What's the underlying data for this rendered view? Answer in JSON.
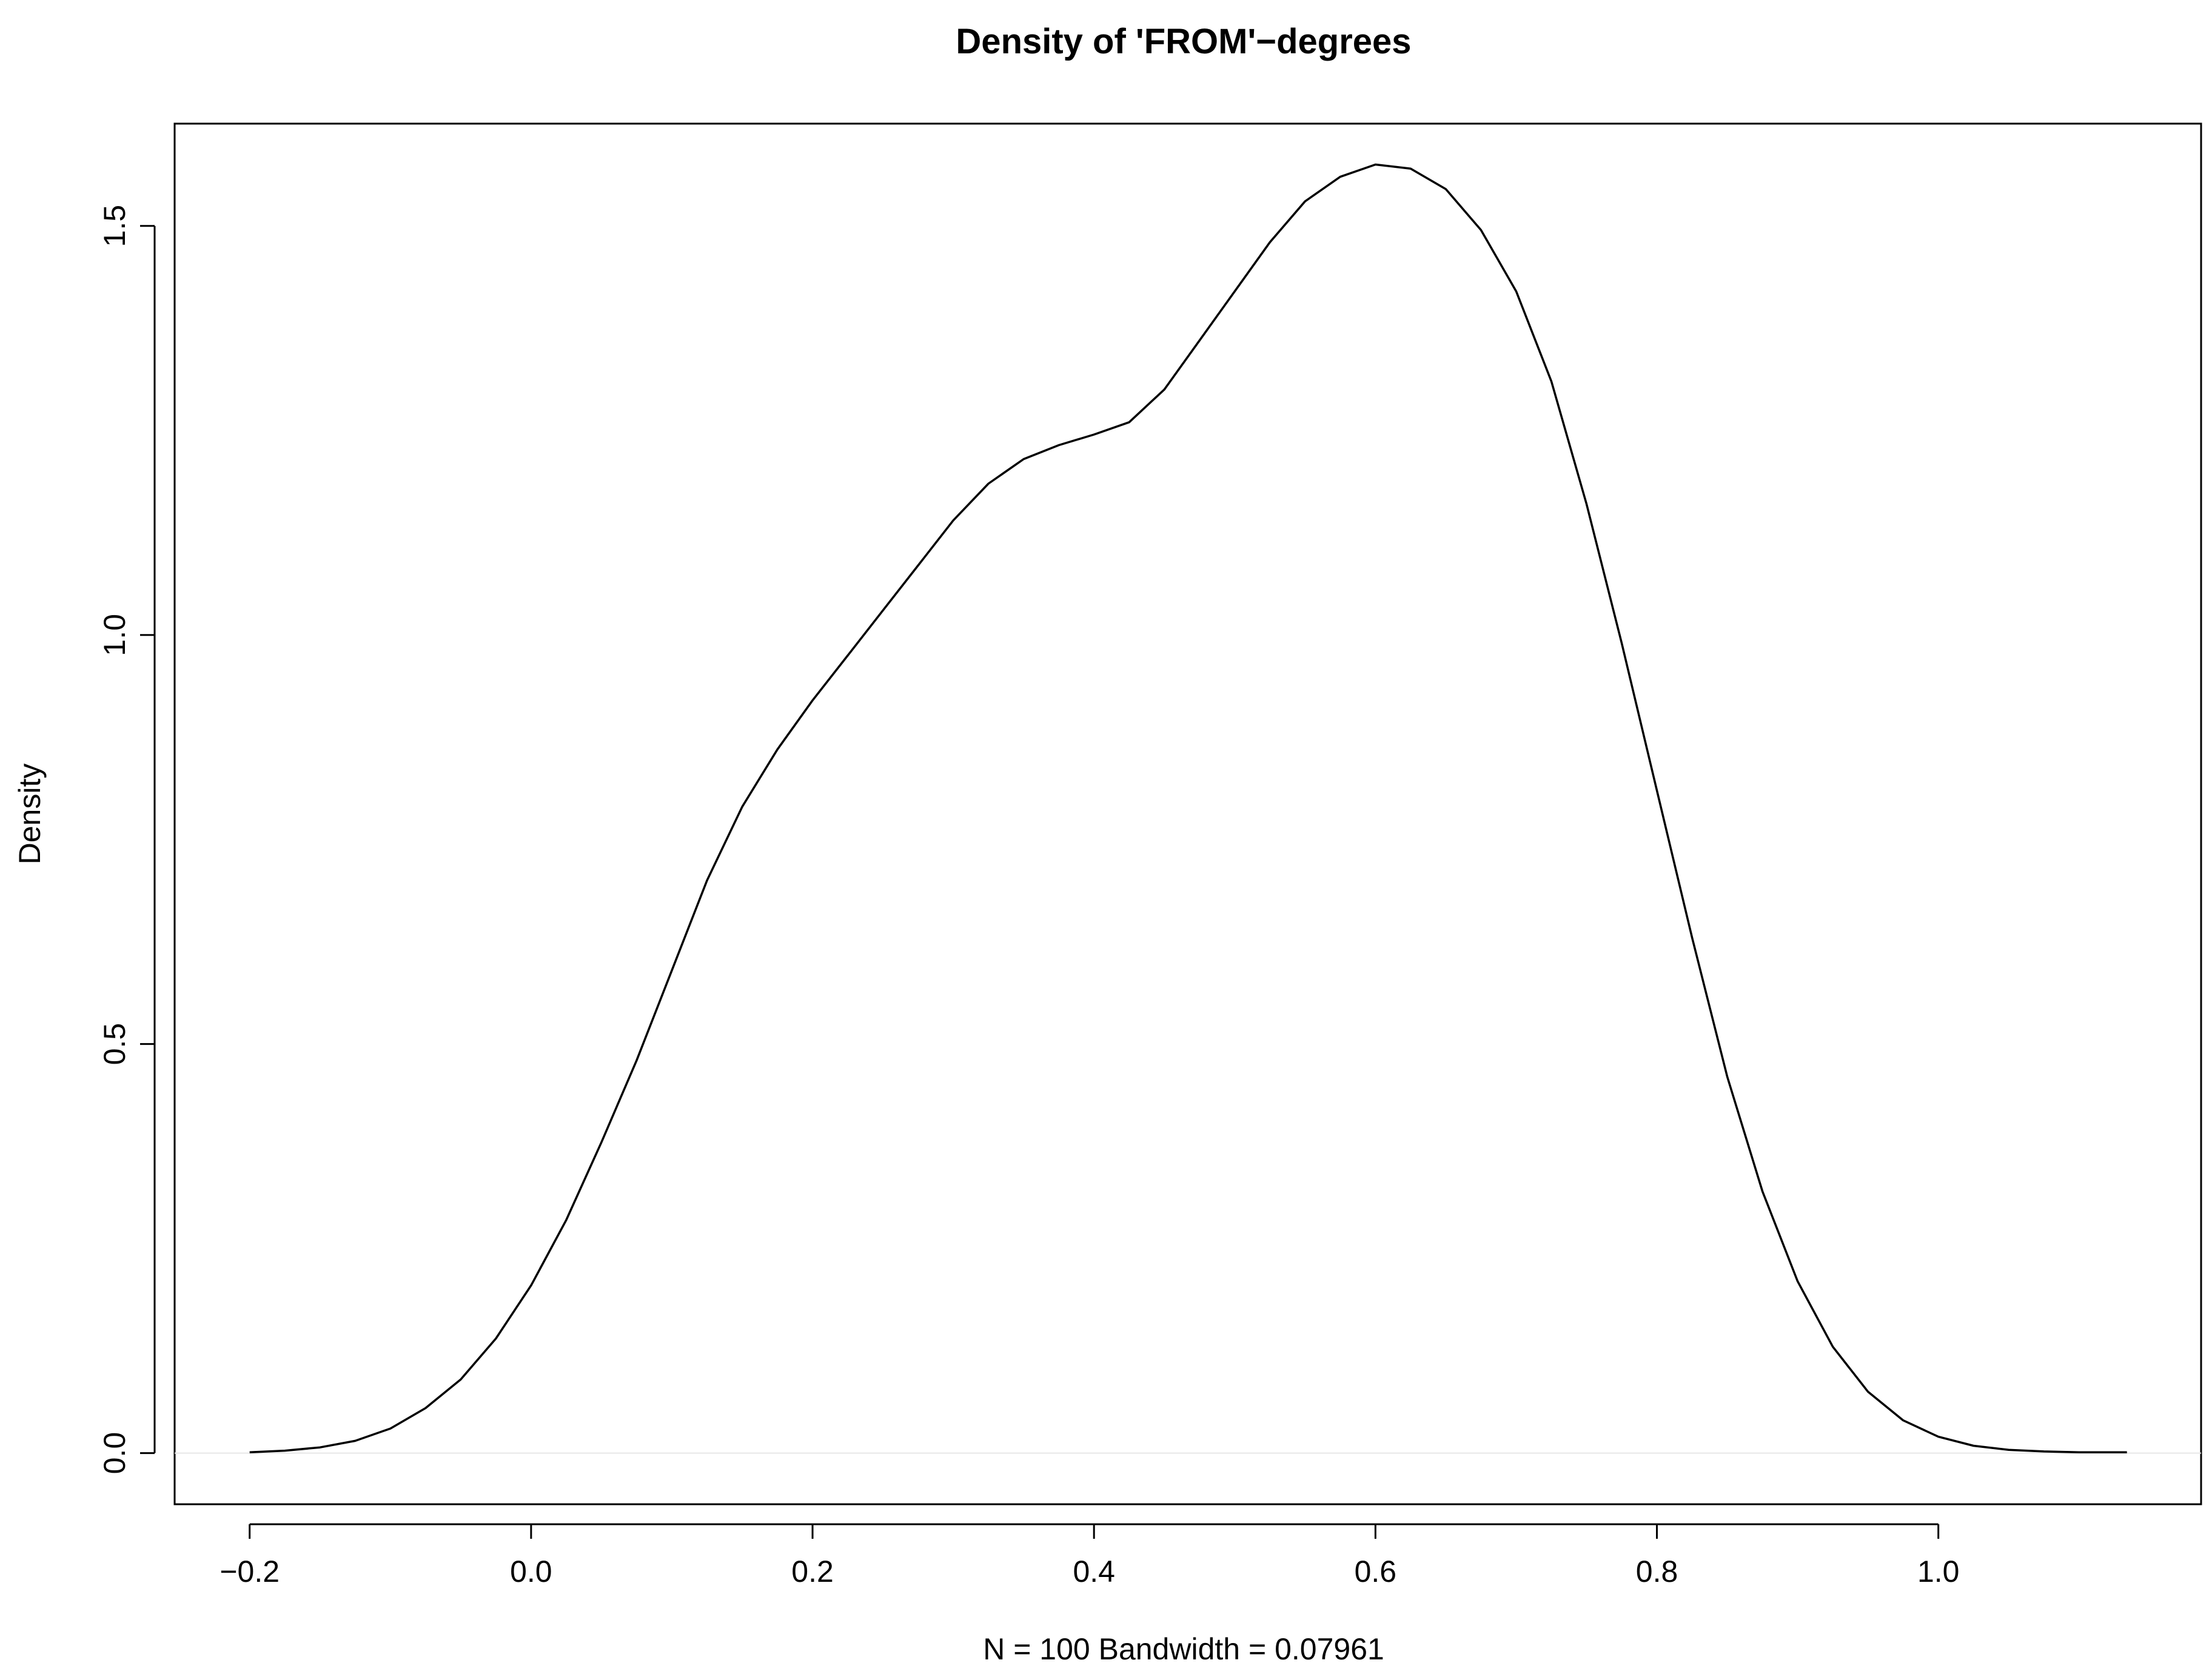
{
  "chart_data": {
    "type": "line",
    "title": "Density of 'FROM'−degrees",
    "xlabel": "N = 100   Bandwidth = 0.07961",
    "ylabel": "Density",
    "xlim": [
      -0.2533,
      1.1867
    ],
    "ylim": [
      -0.0625,
      1.625
    ],
    "x_ticks": [
      -0.2,
      0.0,
      0.2,
      0.4,
      0.6,
      0.8,
      1.0
    ],
    "x_tick_labels": [
      "−0.2",
      "0.0",
      "0.2",
      "0.4",
      "0.6",
      "0.8",
      "1.0"
    ],
    "y_ticks": [
      0.0,
      0.5,
      1.0,
      1.5
    ],
    "y_tick_labels": [
      "0.0",
      "0.5",
      "1.0",
      "1.5"
    ],
    "grid": false,
    "legend": "none",
    "line_color": "#000000",
    "baseline_color": "#e6e6e6",
    "series": [
      {
        "x": [
          -0.2,
          -0.175,
          -0.15,
          -0.125,
          -0.1,
          -0.075,
          -0.05,
          -0.025,
          0.0,
          0.025,
          0.05,
          0.075,
          0.1,
          0.125,
          0.15,
          0.175,
          0.2,
          0.225,
          0.25,
          0.275,
          0.3,
          0.325,
          0.35,
          0.375,
          0.4,
          0.425,
          0.45,
          0.475,
          0.5,
          0.525,
          0.55,
          0.575,
          0.6,
          0.625,
          0.65,
          0.675,
          0.7,
          0.725,
          0.75,
          0.775,
          0.8,
          0.825,
          0.85,
          0.875,
          0.9,
          0.925,
          0.95,
          0.975,
          1.0,
          1.025,
          1.05,
          1.075,
          1.1,
          1.134
        ],
        "y": [
          0.001,
          0.003,
          0.007,
          0.015,
          0.03,
          0.055,
          0.09,
          0.14,
          0.205,
          0.285,
          0.38,
          0.48,
          0.59,
          0.7,
          0.79,
          0.86,
          0.92,
          0.975,
          1.03,
          1.085,
          1.14,
          1.185,
          1.215,
          1.232,
          1.245,
          1.26,
          1.3,
          1.36,
          1.42,
          1.48,
          1.53,
          1.56,
          1.575,
          1.57,
          1.545,
          1.495,
          1.42,
          1.31,
          1.16,
          0.99,
          0.81,
          0.63,
          0.46,
          0.32,
          0.21,
          0.13,
          0.075,
          0.04,
          0.02,
          0.009,
          0.004,
          0.002,
          0.001,
          0.001
        ]
      }
    ]
  }
}
